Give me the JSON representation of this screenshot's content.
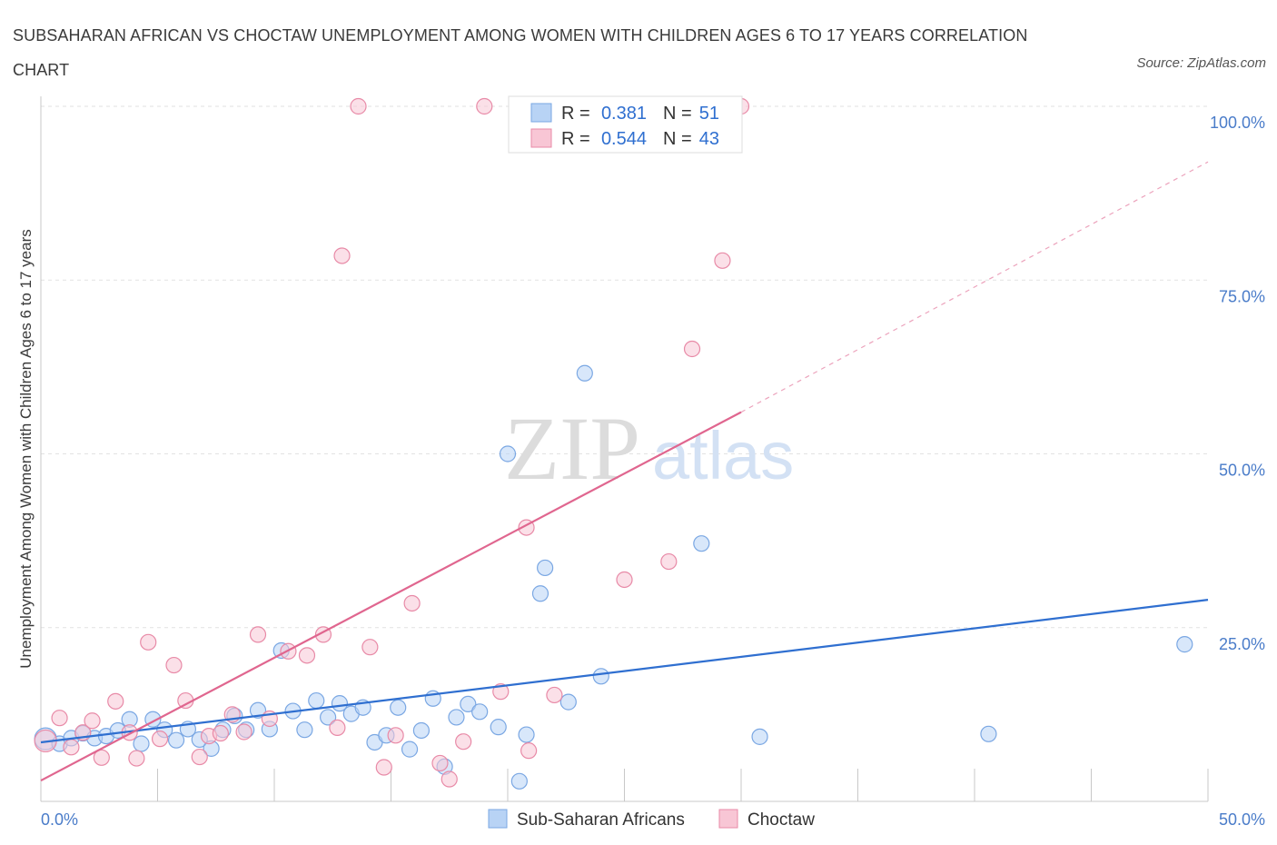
{
  "title": "SUBSAHARAN AFRICAN VS CHOCTAW UNEMPLOYMENT AMONG WOMEN WITH CHILDREN AGES 6 TO 17 YEARS CORRELATION CHART",
  "source": "Source: ZipAtlas.com",
  "watermark": {
    "zip": "ZIP",
    "atlas": "atlas"
  },
  "legend": {
    "r_label": "R =",
    "n_label": "N =",
    "rows": [
      {
        "name": "Sub-Saharan Africans",
        "r": "0.381",
        "n": "51",
        "fill": "#b8d3f5",
        "stroke": "#7aa7e3"
      },
      {
        "name": "Choctaw",
        "r": "0.544",
        "n": "43",
        "fill": "#f8c6d5",
        "stroke": "#e88aa7"
      }
    ]
  },
  "chart_data": {
    "type": "scatter",
    "xlabel": "",
    "ylabel": "Unemployment Among Women with Children Ages 6 to 17 years",
    "xlim": [
      0,
      50
    ],
    "ylim": [
      0,
      100
    ],
    "x_tick_labels": [
      "0.0%",
      "50.0%"
    ],
    "y_tick_labels": [
      "25.0%",
      "50.0%",
      "75.0%",
      "100.0%"
    ],
    "y_ticks": [
      25,
      50,
      75,
      100
    ],
    "grid": "horizontal dashed",
    "legend_position": "top-center",
    "series": [
      {
        "name": "Sub-Saharan Africans",
        "color": "#2f6fd0",
        "fill": "#b8d3f5",
        "trend": {
          "x": [
            0,
            50
          ],
          "y": [
            8.5,
            29.0
          ],
          "dashed_extension": false
        },
        "points": [
          [
            0.2,
            9.0
          ],
          [
            0.8,
            8.3
          ],
          [
            1.3,
            9.1
          ],
          [
            1.8,
            9.8
          ],
          [
            2.3,
            9.1
          ],
          [
            2.8,
            9.4
          ],
          [
            3.3,
            10.2
          ],
          [
            3.8,
            11.8
          ],
          [
            4.3,
            8.3
          ],
          [
            4.8,
            11.8
          ],
          [
            5.3,
            10.3
          ],
          [
            5.8,
            8.8
          ],
          [
            6.3,
            10.4
          ],
          [
            6.8,
            8.9
          ],
          [
            7.3,
            7.6
          ],
          [
            7.8,
            10.3
          ],
          [
            8.3,
            12.3
          ],
          [
            8.8,
            10.3
          ],
          [
            9.3,
            13.1
          ],
          [
            9.8,
            10.4
          ],
          [
            10.3,
            21.7
          ],
          [
            10.8,
            13.0
          ],
          [
            11.3,
            10.3
          ],
          [
            11.8,
            14.5
          ],
          [
            12.3,
            12.1
          ],
          [
            12.8,
            14.1
          ],
          [
            13.3,
            12.6
          ],
          [
            13.8,
            13.5
          ],
          [
            14.3,
            8.5
          ],
          [
            14.8,
            9.5
          ],
          [
            15.3,
            13.5
          ],
          [
            15.8,
            7.5
          ],
          [
            16.3,
            10.2
          ],
          [
            16.8,
            14.8
          ],
          [
            17.3,
            5.0
          ],
          [
            17.8,
            12.1
          ],
          [
            18.3,
            14.0
          ],
          [
            18.8,
            12.9
          ],
          [
            19.6,
            10.7
          ],
          [
            20.0,
            50.0
          ],
          [
            20.5,
            2.9
          ],
          [
            20.8,
            9.6
          ],
          [
            21.4,
            29.9
          ],
          [
            21.6,
            33.6
          ],
          [
            22.6,
            14.3
          ],
          [
            23.3,
            61.6
          ],
          [
            24.0,
            18.0
          ],
          [
            28.3,
            37.1
          ],
          [
            30.8,
            9.3
          ],
          [
            40.6,
            9.7
          ],
          [
            49.0,
            22.6
          ]
        ]
      },
      {
        "name": "Choctaw",
        "color": "#e0668f",
        "fill": "#f8c6d5",
        "trend": {
          "x": [
            0,
            30
          ],
          "y": [
            3.0,
            56.0
          ],
          "dashed_to": [
            50,
            92.0
          ]
        },
        "points": [
          [
            0.2,
            8.7
          ],
          [
            0.8,
            12.0
          ],
          [
            1.3,
            7.8
          ],
          [
            1.8,
            9.9
          ],
          [
            2.2,
            11.6
          ],
          [
            2.6,
            6.3
          ],
          [
            3.2,
            14.4
          ],
          [
            3.8,
            9.9
          ],
          [
            4.1,
            6.2
          ],
          [
            4.6,
            22.9
          ],
          [
            5.1,
            9.0
          ],
          [
            5.7,
            19.6
          ],
          [
            6.2,
            14.5
          ],
          [
            6.8,
            6.4
          ],
          [
            7.2,
            9.4
          ],
          [
            7.7,
            9.8
          ],
          [
            8.2,
            12.5
          ],
          [
            8.7,
            10.0
          ],
          [
            9.3,
            24.0
          ],
          [
            9.8,
            11.9
          ],
          [
            10.6,
            21.6
          ],
          [
            11.4,
            21.0
          ],
          [
            12.1,
            24.0
          ],
          [
            12.7,
            10.6
          ],
          [
            12.9,
            78.5
          ],
          [
            13.6,
            100.0
          ],
          [
            14.1,
            22.2
          ],
          [
            14.7,
            4.9
          ],
          [
            15.2,
            9.5
          ],
          [
            15.9,
            28.5
          ],
          [
            17.1,
            5.5
          ],
          [
            17.5,
            3.2
          ],
          [
            18.1,
            8.6
          ],
          [
            19.0,
            100.0
          ],
          [
            19.7,
            15.8
          ],
          [
            20.8,
            39.4
          ],
          [
            20.9,
            7.3
          ],
          [
            22.0,
            15.3
          ],
          [
            25.0,
            31.9
          ],
          [
            26.9,
            34.5
          ],
          [
            27.9,
            65.1
          ],
          [
            29.2,
            77.8
          ],
          [
            30.0,
            100.0
          ]
        ]
      }
    ]
  }
}
